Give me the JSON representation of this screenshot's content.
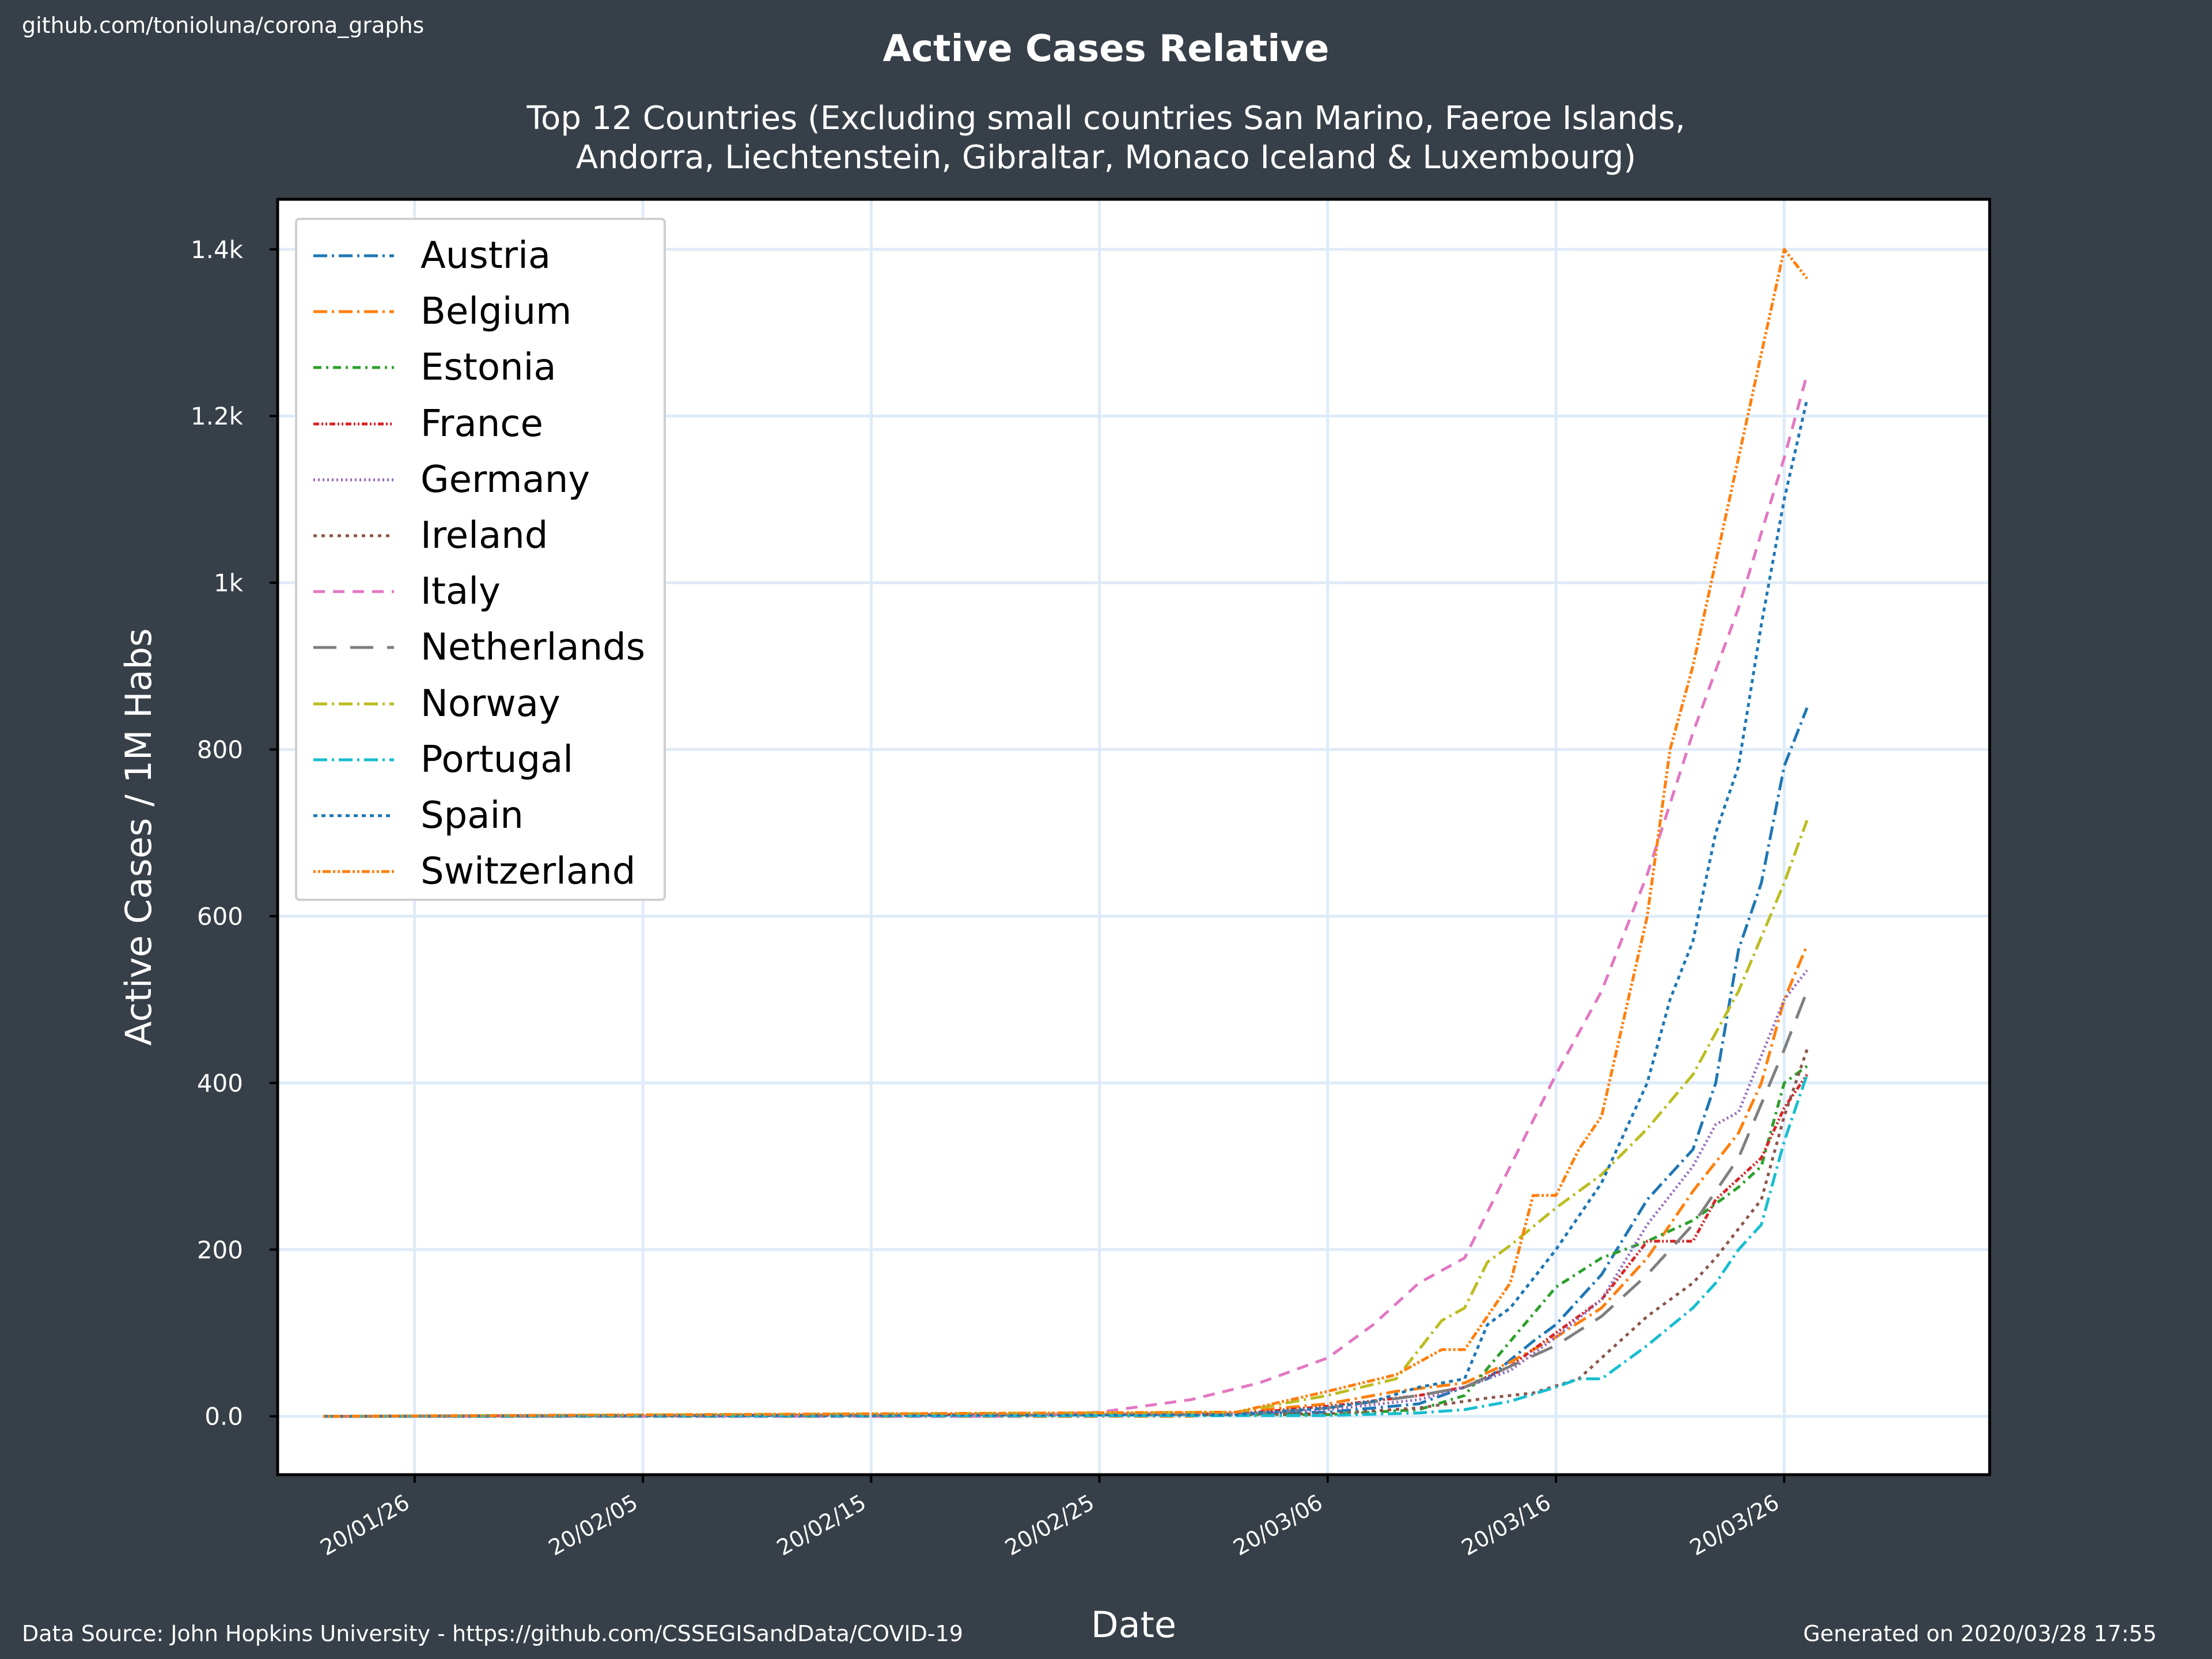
{
  "header": {
    "source_link": "github.com/tonioluna/corona_graphs",
    "title": "Active Cases Relative",
    "subtitle_line1": "Top 12 Countries (Excluding small countries San Marino, Faeroe Islands,",
    "subtitle_line2": "Andorra, Liechtenstein, Gibraltar, Monaco Iceland & Luxembourg)"
  },
  "footer": {
    "data_source": "Data Source: John Hopkins University - https://github.com/CSSEGISandData/COVID-19",
    "generated": "Generated on 2020/03/28 17:55"
  },
  "colors": {
    "background": "#373f48",
    "plot_bg": "#ffffff",
    "grid": "#deebf7"
  },
  "chart_data": {
    "type": "line",
    "title": "Active Cases Relative",
    "xlabel": "Date",
    "ylabel": "Active Cases / 1M Habs",
    "x_ticks": [
      "20/01/26",
      "20/02/05",
      "20/02/15",
      "20/02/25",
      "20/03/06",
      "20/03/16",
      "20/03/26"
    ],
    "y_ticks": [
      {
        "value": 0,
        "label": "0.0"
      },
      {
        "value": 200,
        "label": "200"
      },
      {
        "value": 400,
        "label": "400"
      },
      {
        "value": 600,
        "label": "600"
      },
      {
        "value": 800,
        "label": "800"
      },
      {
        "value": 1000,
        "label": "1k"
      },
      {
        "value": 1200,
        "label": "1.2k"
      },
      {
        "value": 1400,
        "label": "1.4k"
      }
    ],
    "xlim": [
      "2020-01-20",
      "2020-04-04"
    ],
    "ylim": [
      -70,
      1460
    ],
    "grid": true,
    "legend_position": "top-left",
    "series": [
      {
        "name": "Austria",
        "color": "#1f77b4",
        "dash": "24,8,4,8",
        "points": [
          [
            "2020-01-22",
            0
          ],
          [
            "2020-02-25",
            0
          ],
          [
            "2020-03-06",
            5
          ],
          [
            "2020-03-10",
            15
          ],
          [
            "2020-03-13",
            45
          ],
          [
            "2020-03-15",
            90
          ],
          [
            "2020-03-16",
            110
          ],
          [
            "2020-03-18",
            170
          ],
          [
            "2020-03-20",
            260
          ],
          [
            "2020-03-22",
            320
          ],
          [
            "2020-03-23",
            400
          ],
          [
            "2020-03-24",
            560
          ],
          [
            "2020-03-25",
            640
          ],
          [
            "2020-03-26",
            780
          ],
          [
            "2020-03-27",
            850
          ]
        ]
      },
      {
        "name": "Belgium",
        "color": "#ff7f0e",
        "dash": "24,8,4,8",
        "points": [
          [
            "2020-01-22",
            0
          ],
          [
            "2020-02-29",
            0
          ],
          [
            "2020-03-06",
            15
          ],
          [
            "2020-03-09",
            30
          ],
          [
            "2020-03-12",
            40
          ],
          [
            "2020-03-14",
            65
          ],
          [
            "2020-03-16",
            95
          ],
          [
            "2020-03-18",
            130
          ],
          [
            "2020-03-20",
            190
          ],
          [
            "2020-03-22",
            270
          ],
          [
            "2020-03-24",
            340
          ],
          [
            "2020-03-25",
            400
          ],
          [
            "2020-03-26",
            500
          ],
          [
            "2020-03-27",
            565
          ]
        ]
      },
      {
        "name": "Estonia",
        "color": "#2ca02c",
        "dash": "14,8,4,8",
        "points": [
          [
            "2020-01-22",
            0
          ],
          [
            "2020-03-06",
            2
          ],
          [
            "2020-03-10",
            8
          ],
          [
            "2020-03-12",
            25
          ],
          [
            "2020-03-14",
            90
          ],
          [
            "2020-03-16",
            155
          ],
          [
            "2020-03-18",
            190
          ],
          [
            "2020-03-20",
            210
          ],
          [
            "2020-03-22",
            235
          ],
          [
            "2020-03-24",
            275
          ],
          [
            "2020-03-25",
            300
          ],
          [
            "2020-03-26",
            400
          ],
          [
            "2020-03-27",
            420
          ]
        ]
      },
      {
        "name": "France",
        "color": "#d62728",
        "dash": "10,4,3,4,3,4",
        "points": [
          [
            "2020-01-22",
            0
          ],
          [
            "2020-03-02",
            3
          ],
          [
            "2020-03-06",
            12
          ],
          [
            "2020-03-10",
            25
          ],
          [
            "2020-03-12",
            35
          ],
          [
            "2020-03-14",
            60
          ],
          [
            "2020-03-16",
            100
          ],
          [
            "2020-03-18",
            140
          ],
          [
            "2020-03-20",
            210
          ],
          [
            "2020-03-22",
            210
          ],
          [
            "2020-03-23",
            260
          ],
          [
            "2020-03-25",
            310
          ],
          [
            "2020-03-26",
            370
          ],
          [
            "2020-03-27",
            410
          ]
        ]
      },
      {
        "name": "Germany",
        "color": "#9467bd",
        "dash": "3,5",
        "points": [
          [
            "2020-01-22",
            0
          ],
          [
            "2020-03-02",
            3
          ],
          [
            "2020-03-06",
            8
          ],
          [
            "2020-03-10",
            20
          ],
          [
            "2020-03-12",
            35
          ],
          [
            "2020-03-14",
            55
          ],
          [
            "2020-03-16",
            95
          ],
          [
            "2020-03-18",
            140
          ],
          [
            "2020-03-20",
            230
          ],
          [
            "2020-03-22",
            300
          ],
          [
            "2020-03-23",
            350
          ],
          [
            "2020-03-24",
            365
          ],
          [
            "2020-03-26",
            500
          ],
          [
            "2020-03-27",
            535
          ]
        ]
      },
      {
        "name": "Ireland",
        "color": "#8c564b",
        "dash": "6,8",
        "points": [
          [
            "2020-01-22",
            0
          ],
          [
            "2020-03-06",
            3
          ],
          [
            "2020-03-10",
            10
          ],
          [
            "2020-03-13",
            22
          ],
          [
            "2020-03-15",
            28
          ],
          [
            "2020-03-17",
            45
          ],
          [
            "2020-03-18",
            70
          ],
          [
            "2020-03-20",
            120
          ],
          [
            "2020-03-22",
            160
          ],
          [
            "2020-03-23",
            190
          ],
          [
            "2020-03-25",
            260
          ],
          [
            "2020-03-26",
            360
          ],
          [
            "2020-03-27",
            440
          ]
        ]
      },
      {
        "name": "Italy",
        "color": "#e377c2",
        "dash": "20,14",
        "points": [
          [
            "2020-01-22",
            0
          ],
          [
            "2020-02-21",
            0
          ],
          [
            "2020-02-25",
            5
          ],
          [
            "2020-02-29",
            20
          ],
          [
            "2020-03-03",
            40
          ],
          [
            "2020-03-06",
            70
          ],
          [
            "2020-03-08",
            110
          ],
          [
            "2020-03-10",
            160
          ],
          [
            "2020-03-12",
            190
          ],
          [
            "2020-03-14",
            300
          ],
          [
            "2020-03-16",
            410
          ],
          [
            "2020-03-18",
            510
          ],
          [
            "2020-03-20",
            650
          ],
          [
            "2020-03-22",
            820
          ],
          [
            "2020-03-24",
            970
          ],
          [
            "2020-03-26",
            1150
          ],
          [
            "2020-03-27",
            1250
          ]
        ]
      },
      {
        "name": "Netherlands",
        "color": "#7f7f7f",
        "dash": "40,24",
        "points": [
          [
            "2020-01-22",
            0
          ],
          [
            "2020-03-02",
            2
          ],
          [
            "2020-03-06",
            10
          ],
          [
            "2020-03-10",
            25
          ],
          [
            "2020-03-12",
            35
          ],
          [
            "2020-03-14",
            60
          ],
          [
            "2020-03-16",
            85
          ],
          [
            "2020-03-18",
            120
          ],
          [
            "2020-03-20",
            170
          ],
          [
            "2020-03-22",
            230
          ],
          [
            "2020-03-24",
            310
          ],
          [
            "2020-03-26",
            440
          ],
          [
            "2020-03-27",
            510
          ]
        ]
      },
      {
        "name": "Norway",
        "color": "#bcbd22",
        "dash": "24,8,4,8",
        "points": [
          [
            "2020-01-22",
            0
          ],
          [
            "2020-03-02",
            5
          ],
          [
            "2020-03-06",
            25
          ],
          [
            "2020-03-09",
            45
          ],
          [
            "2020-03-11",
            115
          ],
          [
            "2020-03-12",
            130
          ],
          [
            "2020-03-13",
            185
          ],
          [
            "2020-03-14",
            205
          ],
          [
            "2020-03-16",
            250
          ],
          [
            "2020-03-18",
            290
          ],
          [
            "2020-03-20",
            345
          ],
          [
            "2020-03-22",
            410
          ],
          [
            "2020-03-24",
            510
          ],
          [
            "2020-03-26",
            640
          ],
          [
            "2020-03-27",
            715
          ]
        ]
      },
      {
        "name": "Portugal",
        "color": "#17becf",
        "dash": "24,8,4,8",
        "points": [
          [
            "2020-01-22",
            0
          ],
          [
            "2020-03-06",
            1
          ],
          [
            "2020-03-10",
            4
          ],
          [
            "2020-03-12",
            8
          ],
          [
            "2020-03-14",
            18
          ],
          [
            "2020-03-16",
            35
          ],
          [
            "2020-03-17",
            45
          ],
          [
            "2020-03-18",
            45
          ],
          [
            "2020-03-20",
            85
          ],
          [
            "2020-03-22",
            130
          ],
          [
            "2020-03-23",
            160
          ],
          [
            "2020-03-24",
            200
          ],
          [
            "2020-03-25",
            230
          ],
          [
            "2020-03-26",
            330
          ],
          [
            "2020-03-27",
            410
          ]
        ]
      },
      {
        "name": "Spain",
        "color": "#1f77b4",
        "dash": "7,7",
        "points": [
          [
            "2020-01-22",
            0
          ],
          [
            "2020-03-02",
            2
          ],
          [
            "2020-03-06",
            10
          ],
          [
            "2020-03-08",
            18
          ],
          [
            "2020-03-10",
            35
          ],
          [
            "2020-03-12",
            45
          ],
          [
            "2020-03-13",
            110
          ],
          [
            "2020-03-14",
            130
          ],
          [
            "2020-03-16",
            200
          ],
          [
            "2020-03-18",
            280
          ],
          [
            "2020-03-20",
            400
          ],
          [
            "2020-03-21",
            500
          ],
          [
            "2020-03-22",
            570
          ],
          [
            "2020-03-23",
            700
          ],
          [
            "2020-03-24",
            780
          ],
          [
            "2020-03-25",
            950
          ],
          [
            "2020-03-26",
            1100
          ],
          [
            "2020-03-27",
            1220
          ]
        ]
      },
      {
        "name": "Switzerland",
        "color": "#ff7f0e",
        "dash": "4,4,4,4,14,4",
        "points": [
          [
            "2020-01-22",
            0
          ],
          [
            "2020-03-02",
            5
          ],
          [
            "2020-03-06",
            30
          ],
          [
            "2020-03-09",
            50
          ],
          [
            "2020-03-11",
            80
          ],
          [
            "2020-03-12",
            80
          ],
          [
            "2020-03-13",
            120
          ],
          [
            "2020-03-14",
            160
          ],
          [
            "2020-03-15",
            265
          ],
          [
            "2020-03-16",
            265
          ],
          [
            "2020-03-17",
            320
          ],
          [
            "2020-03-18",
            360
          ],
          [
            "2020-03-20",
            600
          ],
          [
            "2020-03-21",
            800
          ],
          [
            "2020-03-22",
            900
          ],
          [
            "2020-03-24",
            1150
          ],
          [
            "2020-03-26",
            1400
          ],
          [
            "2020-03-27",
            1365
          ]
        ]
      }
    ]
  }
}
